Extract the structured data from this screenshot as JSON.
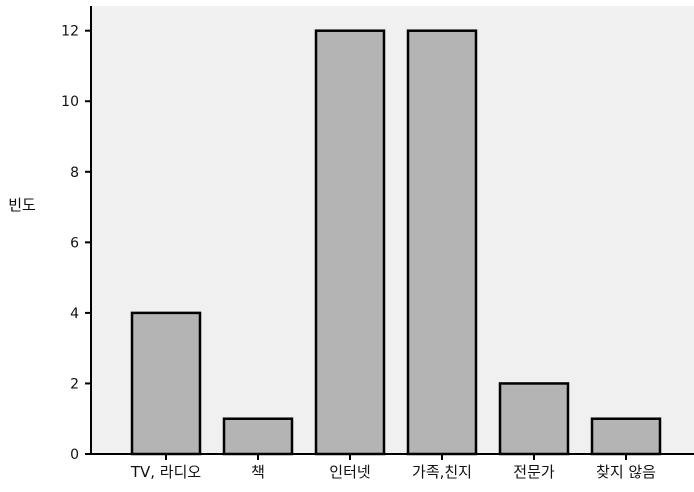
{
  "chart_data": {
    "type": "bar",
    "title": "",
    "xlabel": "",
    "ylabel": "빈도",
    "categories": [
      "TV,  라디오",
      "책",
      "인터넷",
      "가족,친지",
      "전문가",
      "찾지 않음"
    ],
    "values": [
      4,
      1,
      12,
      12,
      2,
      1
    ],
    "ylim": [
      0,
      12.7
    ],
    "yticks": [
      0,
      2,
      4,
      6,
      8,
      10,
      12
    ],
    "grid": false,
    "bar_color": "#b4b4b4",
    "plot_background": "#f0f0f0"
  }
}
